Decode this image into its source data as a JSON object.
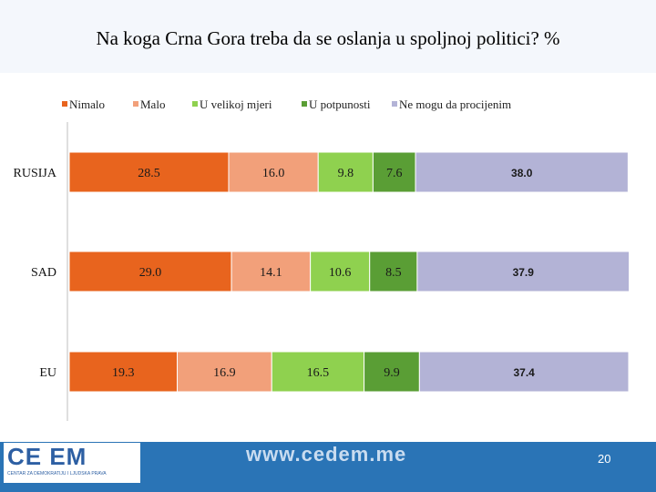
{
  "slide": {
    "footer_url": "www.cedem.me",
    "page_number": "20",
    "logo_text": "CE  EM",
    "logo_subtitle": "CENTAR ZA DEMOKRATIJU I LJUDSKA PRAVA"
  },
  "colors": {
    "title_band": "#f4f7fc",
    "footer_band": "#2a74b6"
  },
  "chart_data": {
    "type": "bar",
    "orientation": "horizontal",
    "stacked": true,
    "title": "Na koga Crna Gora treba da se oslanja u spoljnoj politici? %",
    "legend_position": "top",
    "categories": [
      "RUSIJA",
      "SAD",
      "EU"
    ],
    "series": [
      {
        "name": "Nimalo",
        "color": "#e8641e",
        "values": [
          28.5,
          29.0,
          19.3
        ]
      },
      {
        "name": "Malo",
        "color": "#f2a07a",
        "values": [
          16.0,
          14.1,
          16.9
        ]
      },
      {
        "name": "U velikoj mjeri",
        "color": "#8fd14f",
        "values": [
          9.8,
          10.6,
          16.5
        ]
      },
      {
        "name": "U potpunosti",
        "color": "#5a9e35",
        "values": [
          7.6,
          8.5,
          9.9
        ]
      },
      {
        "name": "Ne mogu da procijenim",
        "color": "#b3b3d6",
        "values": [
          38.0,
          37.9,
          37.4
        ]
      }
    ],
    "label_formats": [
      "0.0",
      "0.0",
      "0.0",
      "0.0",
      "bold"
    ],
    "xlim": [
      0,
      100
    ],
    "grid": false
  }
}
